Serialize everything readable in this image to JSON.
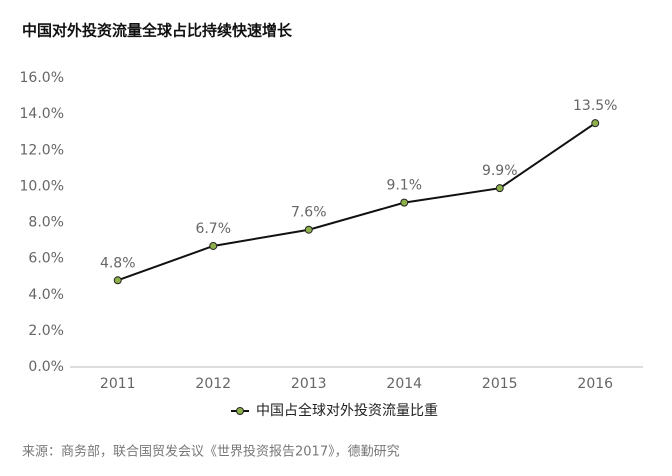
{
  "chart_data": {
    "type": "line",
    "title": "中国对外投资流量全球占比持续快速增长",
    "categories": [
      "2011",
      "2012",
      "2013",
      "2014",
      "2015",
      "2016"
    ],
    "series": [
      {
        "name": "中国占全球对外投资流量比重",
        "color": "#8db04a",
        "line_color": "#111111",
        "values": [
          4.8,
          6.7,
          7.6,
          9.1,
          9.9,
          13.5
        ],
        "value_labels": [
          "4.8%",
          "6.7%",
          "7.6%",
          "9.1%",
          "9.9%",
          "13.5%"
        ]
      }
    ],
    "ylim": [
      0,
      16
    ],
    "yticks": [
      {
        "value": 0,
        "label": "0.0%"
      },
      {
        "value": 2,
        "label": "2.0%"
      },
      {
        "value": 4,
        "label": "4.0%"
      },
      {
        "value": 6,
        "label": "6.0%"
      },
      {
        "value": 8,
        "label": "8.0%"
      },
      {
        "value": 10,
        "label": "10.0%"
      },
      {
        "value": 12,
        "label": "12.0%"
      },
      {
        "value": 14,
        "label": "14.0%"
      },
      {
        "value": 16,
        "label": "16.0%"
      }
    ],
    "grid": false,
    "legend": "bottom",
    "source": "来源：商务部，联合国贸发会议《世界投资报告2017》，德勤研究"
  }
}
